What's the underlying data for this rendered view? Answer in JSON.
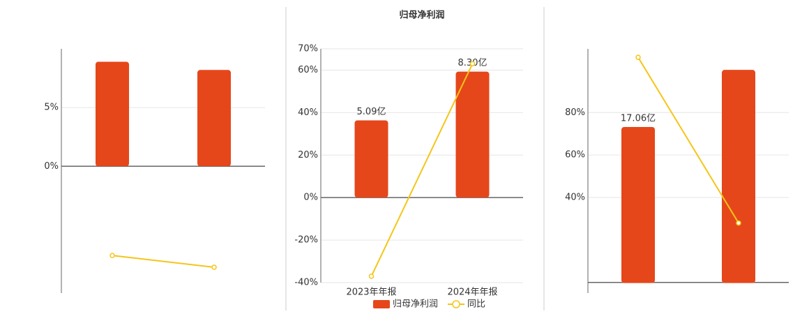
{
  "chart_data": [
    {
      "type": "combo",
      "categories": [
        null,
        null
      ],
      "ylim": [
        -10.8,
        10
      ],
      "yticks": [
        {
          "value": 5,
          "label": "5%"
        },
        {
          "value": 0,
          "label": "0%"
        }
      ],
      "grid": true,
      "series": [
        {
          "type": "bar",
          "color": "#e5471b",
          "values": [
            8.9,
            8.2
          ]
        },
        {
          "type": "line",
          "color": "#f5c518",
          "values": [
            -7.6,
            -8.6
          ]
        }
      ]
    },
    {
      "type": "combo",
      "title": "归母净利润",
      "categories": [
        "2023年年报",
        "2024年年报"
      ],
      "ylim": [
        -40,
        70
      ],
      "yticks": [
        {
          "value": 70,
          "label": "70%"
        },
        {
          "value": 60,
          "label": "60%"
        },
        {
          "value": 40,
          "label": "40%"
        },
        {
          "value": 20,
          "label": "20%"
        },
        {
          "value": 0,
          "label": "0%"
        },
        {
          "value": -20,
          "label": "-20%"
        },
        {
          "value": -40,
          "label": "-40%"
        }
      ],
      "y2lim": [
        -5.6,
        9.8
      ],
      "grid": true,
      "legend": "bottom",
      "series": [
        {
          "name": "归母净利润",
          "type": "bar",
          "axis": "y2",
          "color": "#e5471b",
          "values": [
            5.09,
            8.3
          ],
          "value_labels": [
            "5.09亿",
            "8.30亿"
          ]
        },
        {
          "name": "同比",
          "type": "line",
          "color": "#f5c518",
          "values": [
            -37,
            63
          ]
        }
      ]
    },
    {
      "type": "combo",
      "categories": [
        null,
        null
      ],
      "ylim": [
        -5,
        110
      ],
      "yticks": [
        {
          "value": 80,
          "label": "80%"
        },
        {
          "value": 60,
          "label": "60%"
        },
        {
          "value": 40,
          "label": "40%"
        }
      ],
      "y2lim": [
        -1.1,
        25.6
      ],
      "grid": true,
      "series": [
        {
          "type": "bar",
          "axis": "y2",
          "color": "#e5471b",
          "values": [
            17.06,
            23.3
          ],
          "value_labels": [
            "17.06亿",
            null
          ]
        },
        {
          "type": "line",
          "color": "#f5c518",
          "values": [
            106,
            28
          ]
        }
      ]
    }
  ]
}
